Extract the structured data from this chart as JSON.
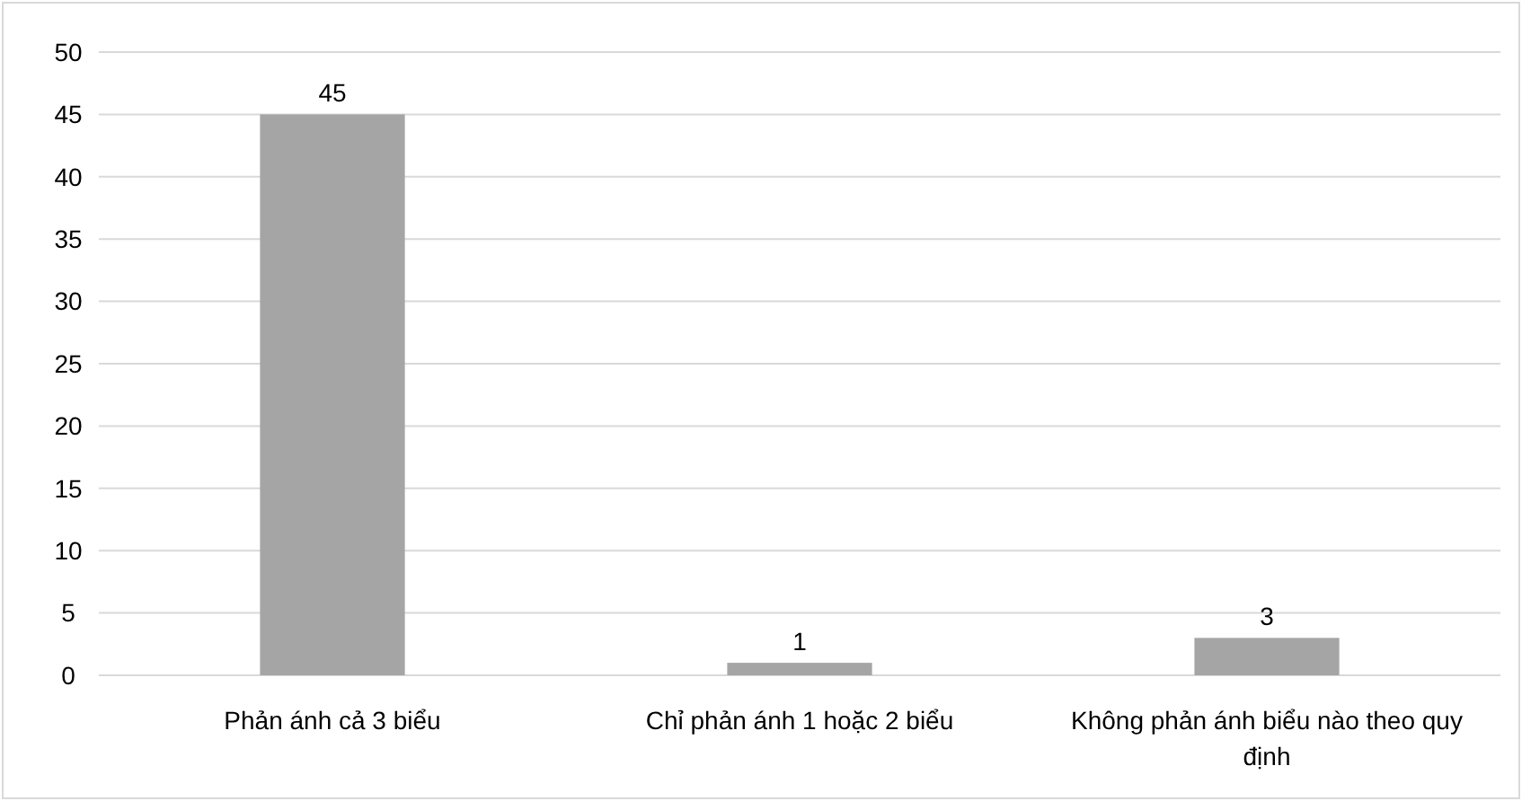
{
  "chart_data": {
    "type": "bar",
    "categories": [
      "Phản ánh cả 3 biểu",
      "Chỉ phản ánh 1 hoặc 2 biểu",
      "Không phản ánh biểu nào theo quy định"
    ],
    "values": [
      45,
      1,
      3
    ],
    "color": "#a5a5a5",
    "ylim": [
      0,
      50
    ],
    "yticks": [
      0,
      5,
      10,
      15,
      20,
      25,
      30,
      35,
      40,
      45,
      50
    ],
    "grid": "y",
    "data_labels": true
  }
}
